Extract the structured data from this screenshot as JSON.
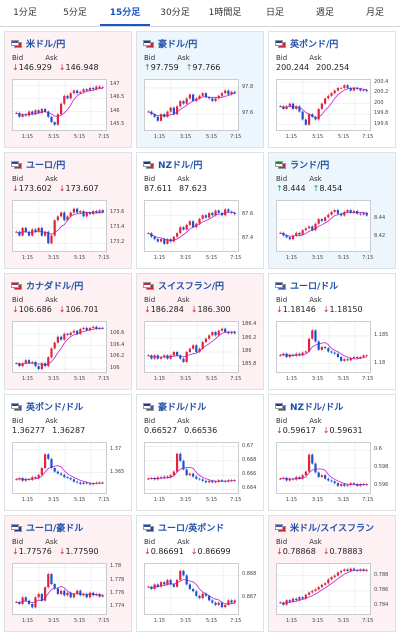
{
  "tabs": [
    {
      "label": "1分足",
      "active": false
    },
    {
      "label": "5分足",
      "active": false
    },
    {
      "label": "15分足",
      "active": true
    },
    {
      "label": "30分足",
      "active": false
    },
    {
      "label": "1時間足",
      "active": false
    },
    {
      "label": "日足",
      "active": false
    },
    {
      "label": "週足",
      "active": false
    },
    {
      "label": "月足",
      "active": false
    }
  ],
  "labels": {
    "bid": "Bid",
    "ask": "Ask"
  },
  "xticks": [
    "1:15",
    "3:15",
    "5:15",
    "7:15"
  ],
  "cards": [
    {
      "pair": "米ドル/円",
      "flags": [
        "#3a55c4",
        "#d81e2c"
      ],
      "theme": "down",
      "dir": "down",
      "bid": "146.929",
      "ask": "146.948",
      "yticks": [
        "147",
        "146.5",
        "146",
        "145.5"
      ],
      "ymin": 145.3,
      "ymax": 147.2,
      "closes": [
        145.95,
        145.8,
        145.9,
        145.85,
        146.0,
        145.9,
        146.05,
        145.95,
        146.1,
        146.0,
        145.8,
        145.6,
        145.5,
        145.9,
        146.3,
        146.6,
        146.5,
        146.7,
        146.8,
        146.7,
        146.75,
        146.85,
        146.8,
        146.9,
        146.85,
        146.95,
        146.9,
        146.93
      ]
    },
    {
      "pair": "豪ドル/円",
      "flags": [
        "#1e3a8a",
        "#d81e2c"
      ],
      "theme": "up",
      "dir": "up",
      "bid": "97.759",
      "ask": "97.766",
      "yticks": [
        "97.8",
        "97.6"
      ],
      "ymin": 97.48,
      "ymax": 97.86,
      "closes": [
        97.62,
        97.6,
        97.58,
        97.55,
        97.6,
        97.58,
        97.62,
        97.65,
        97.6,
        97.66,
        97.7,
        97.68,
        97.72,
        97.75,
        97.7,
        97.72,
        97.74,
        97.76,
        97.73,
        97.72,
        97.7,
        97.72,
        97.74,
        97.76,
        97.78,
        97.75,
        97.77,
        97.76
      ]
    },
    {
      "pair": "英ポンド/円",
      "flags": [
        "#2a3f9a",
        "#d81e2c"
      ],
      "theme": "neutral",
      "dir": "none",
      "bid": "200.244",
      "ask": "200.254",
      "yticks": [
        "200.4",
        "200.2",
        "200",
        "199.8",
        "199.6"
      ],
      "ymin": 199.5,
      "ymax": 200.45,
      "closes": [
        199.95,
        199.9,
        199.95,
        200.0,
        199.9,
        199.95,
        199.85,
        199.7,
        199.6,
        199.8,
        199.75,
        199.7,
        199.9,
        200.0,
        200.1,
        200.15,
        200.2,
        200.25,
        200.3,
        200.3,
        200.35,
        200.3,
        200.25,
        200.3,
        200.28,
        200.25,
        200.26,
        200.24
      ]
    },
    {
      "pair": "ユーロ/円",
      "flags": [
        "#2a47b5",
        "#d81e2c"
      ],
      "theme": "down",
      "dir": "down",
      "bid": "173.602",
      "ask": "173.607",
      "yticks": [
        "173.6",
        "173.4",
        "173.2"
      ],
      "ymin": 173.1,
      "ymax": 173.75,
      "closes": [
        173.35,
        173.3,
        173.4,
        173.35,
        173.3,
        173.38,
        173.35,
        173.4,
        173.3,
        173.35,
        173.2,
        173.3,
        173.5,
        173.55,
        173.6,
        173.5,
        173.55,
        173.6,
        173.65,
        173.6,
        173.62,
        173.55,
        173.6,
        173.58,
        173.62,
        173.6,
        173.63,
        173.6
      ]
    },
    {
      "pair": "NZドル/円",
      "flags": [
        "#1e3a8a",
        "#d81e2c"
      ],
      "theme": "neutral",
      "dir": "none",
      "bid": "87.611",
      "ask": "87.623",
      "yticks": [
        "87.6",
        "87.4"
      ],
      "ymin": 87.3,
      "ymax": 87.72,
      "closes": [
        87.45,
        87.42,
        87.4,
        87.38,
        87.4,
        87.36,
        87.4,
        87.38,
        87.42,
        87.45,
        87.5,
        87.48,
        87.52,
        87.55,
        87.5,
        87.53,
        87.57,
        87.6,
        87.58,
        87.62,
        87.6,
        87.64,
        87.62,
        87.6,
        87.65,
        87.63,
        87.62,
        87.61
      ]
    },
    {
      "pair": "ランド/円",
      "flags": [
        "#1e8a3a",
        "#d81e2c"
      ],
      "theme": "up",
      "dir": "up",
      "bid": "8.444",
      "ask": "8.454",
      "yticks": [
        "8.44",
        "8.42"
      ],
      "ymin": 8.405,
      "ymax": 8.46,
      "closes": [
        8.425,
        8.422,
        8.42,
        8.418,
        8.422,
        8.425,
        8.423,
        8.428,
        8.43,
        8.432,
        8.428,
        8.435,
        8.44,
        8.438,
        8.442,
        8.445,
        8.448,
        8.45,
        8.446,
        8.444,
        8.448,
        8.45,
        8.447,
        8.449,
        8.446,
        8.445,
        8.447,
        8.444
      ]
    },
    {
      "pair": "カナダドル/円",
      "flags": [
        "#d81e2c",
        "#d81e2c"
      ],
      "theme": "down",
      "dir": "down",
      "bid": "106.686",
      "ask": "106.701",
      "yticks": [
        "106.6",
        "106.4",
        "106.2",
        "106"
      ],
      "ymin": 105.95,
      "ymax": 106.8,
      "closes": [
        106.1,
        106.05,
        106.1,
        106.15,
        106.1,
        106.12,
        106.05,
        106.0,
        106.1,
        106.05,
        106.2,
        106.35,
        106.45,
        106.55,
        106.5,
        106.6,
        106.58,
        106.62,
        106.65,
        106.6,
        106.68,
        106.7,
        106.66,
        106.7,
        106.72,
        106.68,
        106.7,
        106.69
      ]
    },
    {
      "pair": "スイスフラン/円",
      "flags": [
        "#d81e2c",
        "#d81e2c"
      ],
      "theme": "down",
      "dir": "down",
      "bid": "186.284",
      "ask": "186.300",
      "yticks": [
        "186.4",
        "186.2",
        "186",
        "185.8"
      ],
      "ymin": 185.7,
      "ymax": 186.45,
      "closes": [
        185.95,
        185.9,
        185.95,
        185.9,
        185.92,
        185.95,
        185.9,
        185.95,
        186.0,
        185.95,
        185.9,
        185.85,
        186.0,
        186.05,
        186.1,
        186.0,
        186.05,
        186.15,
        186.2,
        186.25,
        186.3,
        186.25,
        186.32,
        186.35,
        186.3,
        186.28,
        186.3,
        186.28
      ]
    },
    {
      "pair": "ユーロ/ドル",
      "flags": [
        "#2a47b5",
        "#3a55c4"
      ],
      "theme": "neutral",
      "dir": "down",
      "bid": "1.18146",
      "ask": "1.18150",
      "yticks": [
        "1.185",
        "1.18"
      ],
      "ymin": 1.1785,
      "ymax": 1.1875,
      "closes": [
        1.1815,
        1.1818,
        1.1812,
        1.1816,
        1.1814,
        1.1818,
        1.1815,
        1.182,
        1.1822,
        1.1845,
        1.186,
        1.184,
        1.1825,
        1.183,
        1.1828,
        1.1822,
        1.182,
        1.1818,
        1.1812,
        1.1805,
        1.1808,
        1.1806,
        1.181,
        1.1812,
        1.181,
        1.1812,
        1.1815,
        1.1815
      ]
    },
    {
      "pair": "英ポンド/ドル",
      "flags": [
        "#2a3f9a",
        "#3a55c4"
      ],
      "theme": "neutral",
      "dir": "none",
      "bid": "1.36277",
      "ask": "1.36287",
      "yticks": [
        "1.37",
        "1.365"
      ],
      "ymin": 1.3605,
      "ymax": 1.3715,
      "closes": [
        1.3635,
        1.3638,
        1.3632,
        1.3636,
        1.3634,
        1.364,
        1.3638,
        1.3645,
        1.366,
        1.369,
        1.368,
        1.366,
        1.3652,
        1.3648,
        1.3645,
        1.364,
        1.3638,
        1.3635,
        1.363,
        1.3628,
        1.3625,
        1.3628,
        1.3626,
        1.3624,
        1.3626,
        1.3628,
        1.3627,
        1.3628
      ]
    },
    {
      "pair": "豪ドル/ドル",
      "flags": [
        "#1e3a8a",
        "#3a55c4"
      ],
      "theme": "neutral",
      "dir": "none",
      "bid": "0.66527",
      "ask": "0.66536",
      "yticks": [
        "0.67",
        "0.668",
        "0.666",
        "0.664"
      ],
      "ymin": 0.6635,
      "ymax": 0.6705,
      "closes": [
        0.6655,
        0.6656,
        0.6654,
        0.6657,
        0.6656,
        0.6658,
        0.6657,
        0.666,
        0.6665,
        0.669,
        0.668,
        0.6668,
        0.666,
        0.6662,
        0.6658,
        0.6655,
        0.6654,
        0.6652,
        0.665,
        0.6652,
        0.665,
        0.6651,
        0.6653,
        0.6652,
        0.6651,
        0.6653,
        0.6652,
        0.6653
      ]
    },
    {
      "pair": "NZドル/ドル",
      "flags": [
        "#1e3a8a",
        "#3a55c4"
      ],
      "theme": "neutral",
      "dir": "down",
      "bid": "0.59617",
      "ask": "0.59631",
      "yticks": [
        "0.6",
        "0.598",
        "0.596"
      ],
      "ymin": 0.5952,
      "ymax": 0.6008,
      "closes": [
        0.5968,
        0.5969,
        0.5966,
        0.5968,
        0.5967,
        0.597,
        0.5968,
        0.5972,
        0.5976,
        0.5995,
        0.5985,
        0.5975,
        0.597,
        0.5972,
        0.5968,
        0.5966,
        0.5965,
        0.5963,
        0.596,
        0.5962,
        0.596,
        0.5961,
        0.5963,
        0.5962,
        0.596,
        0.5962,
        0.5961,
        0.5962
      ]
    },
    {
      "pair": "ユーロ/豪ドル",
      "flags": [
        "#2a47b5",
        "#1e3a8a"
      ],
      "theme": "down",
      "dir": "down",
      "bid": "1.77576",
      "ask": "1.77590",
      "yticks": [
        "1.78",
        "1.778",
        "1.776",
        "1.774"
      ],
      "ymin": 1.773,
      "ymax": 1.7805,
      "closes": [
        1.7748,
        1.7745,
        1.7755,
        1.775,
        1.7745,
        1.774,
        1.7755,
        1.776,
        1.775,
        1.777,
        1.779,
        1.7775,
        1.7768,
        1.776,
        1.7765,
        1.7758,
        1.7762,
        1.7755,
        1.776,
        1.7765,
        1.7758,
        1.776,
        1.7755,
        1.7762,
        1.7758,
        1.776,
        1.7756,
        1.7758
      ]
    },
    {
      "pair": "ユーロ/英ポンド",
      "flags": [
        "#2a47b5",
        "#2a3f9a"
      ],
      "theme": "neutral",
      "dir": "down",
      "bid": "0.86691",
      "ask": "0.86699",
      "yticks": [
        "0.868",
        "0.867"
      ],
      "ymin": 0.8663,
      "ymax": 0.8685,
      "closes": [
        0.8675,
        0.8674,
        0.8676,
        0.8675,
        0.8677,
        0.8676,
        0.8678,
        0.8676,
        0.8675,
        0.8678,
        0.8682,
        0.868,
        0.8676,
        0.8674,
        0.8673,
        0.8671,
        0.867,
        0.8672,
        0.8671,
        0.8669,
        0.8668,
        0.8667,
        0.8668,
        0.8666,
        0.8667,
        0.8669,
        0.8668,
        0.8669
      ]
    },
    {
      "pair": "米ドル/スイスフラン",
      "flags": [
        "#3a55c4",
        "#d81e2c"
      ],
      "theme": "down",
      "dir": "down",
      "bid": "0.78868",
      "ask": "0.78883",
      "yticks": [
        "0.788",
        "0.786",
        "0.784"
      ],
      "ymin": 0.783,
      "ymax": 0.7895,
      "closes": [
        0.7845,
        0.7842,
        0.7848,
        0.7846,
        0.785,
        0.7848,
        0.7852,
        0.785,
        0.7855,
        0.7858,
        0.786,
        0.7862,
        0.7865,
        0.7868,
        0.787,
        0.7875,
        0.7878,
        0.788,
        0.7884,
        0.7886,
        0.7888,
        0.7886,
        0.7889,
        0.7887,
        0.7886,
        0.7888,
        0.7886,
        0.7887
      ]
    }
  ]
}
